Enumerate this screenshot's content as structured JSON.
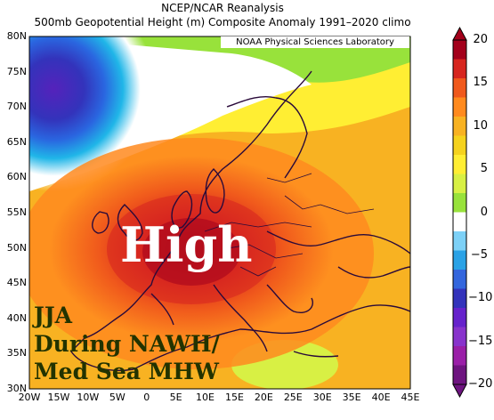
{
  "title": "NCEP/NCAR Reanalysis",
  "subtitle": "500mb Geopotential Height (m) Composite Anomaly 1991–2020 climo",
  "credit": "NOAA Physical Sciences Laboratory",
  "overlay": {
    "feature": "High",
    "season": "JJA",
    "line2": "During NAWH/",
    "line3": "Med Sea MHW"
  },
  "lat_labels": [
    "80N",
    "75N",
    "70N",
    "65N",
    "60N",
    "55N",
    "50N",
    "45N",
    "40N",
    "35N",
    "30N"
  ],
  "lon_labels": [
    "20W",
    "15W",
    "10W",
    "5W",
    "0",
    "5E",
    "10E",
    "15E",
    "20E",
    "25E",
    "30E",
    "35E",
    "40E",
    "45E"
  ],
  "colorbar": {
    "labels": [
      "20",
      "15",
      "10",
      "5",
      "0",
      "−5",
      "−10",
      "−15",
      "−20"
    ],
    "colors": [
      "#a3001b",
      "#d7261f",
      "#f0591c",
      "#ff8a1e",
      "#f8b222",
      "#f5d21d",
      "#ffee33",
      "#d8f044",
      "#98e23b",
      "#ffffff",
      "#7dd1f7",
      "#2aa2e6",
      "#3366dd",
      "#3333bb",
      "#6622cc",
      "#8833cc",
      "#9a1fa8",
      "#6e1480"
    ]
  }
}
